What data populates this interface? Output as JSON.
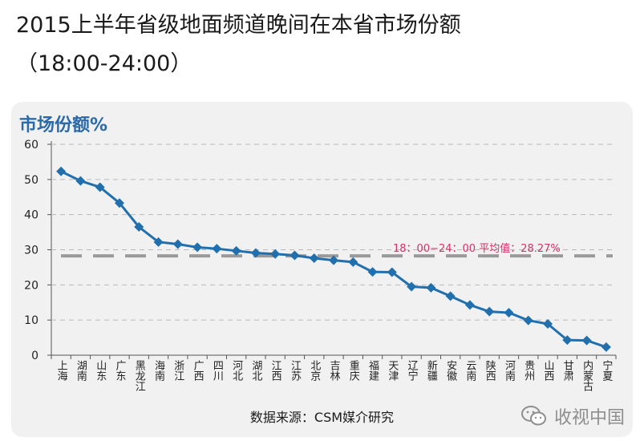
{
  "header": {
    "title": "2015上半年省级地面频道晚间在本省市场份额",
    "subtitle": "（18:00-24:00）"
  },
  "chart_data": {
    "type": "line",
    "ylabel": "市场份额%",
    "ylim": [
      0,
      60
    ],
    "yticks": [
      0,
      10,
      20,
      30,
      40,
      50,
      60
    ],
    "grid": true,
    "categories": [
      "上海",
      "湖南",
      "山东",
      "广东",
      "黑龙江",
      "海南",
      "浙江",
      "广西",
      "四川",
      "河北",
      "湖北",
      "江西",
      "江苏",
      "北京",
      "吉林",
      "重庆",
      "福建",
      "天津",
      "辽宁",
      "新疆",
      "安徽",
      "云南",
      "陕西",
      "河南",
      "贵州",
      "山西",
      "甘肃",
      "内蒙古",
      "宁夏"
    ],
    "series": [
      {
        "name": "市场份额",
        "color": "#2170ad",
        "values": [
          52.3,
          49.6,
          47.8,
          43.3,
          36.5,
          32.2,
          31.6,
          30.7,
          30.3,
          29.7,
          29.1,
          28.8,
          28.4,
          27.6,
          27.0,
          26.5,
          23.7,
          23.6,
          19.5,
          19.2,
          16.8,
          14.3,
          12.4,
          12.1,
          9.9,
          8.9,
          4.3,
          4.2,
          2.3
        ]
      }
    ],
    "reference_line": {
      "value": 28.27,
      "label": "18：00−24：00 平均值：28.27%",
      "color": "#9a9a9a",
      "label_color": "#d2326a"
    }
  },
  "footer": {
    "source": "数据来源：CSM媒介研究",
    "watermark": "收视中国",
    "watermark_icon": "wechat-icon"
  }
}
